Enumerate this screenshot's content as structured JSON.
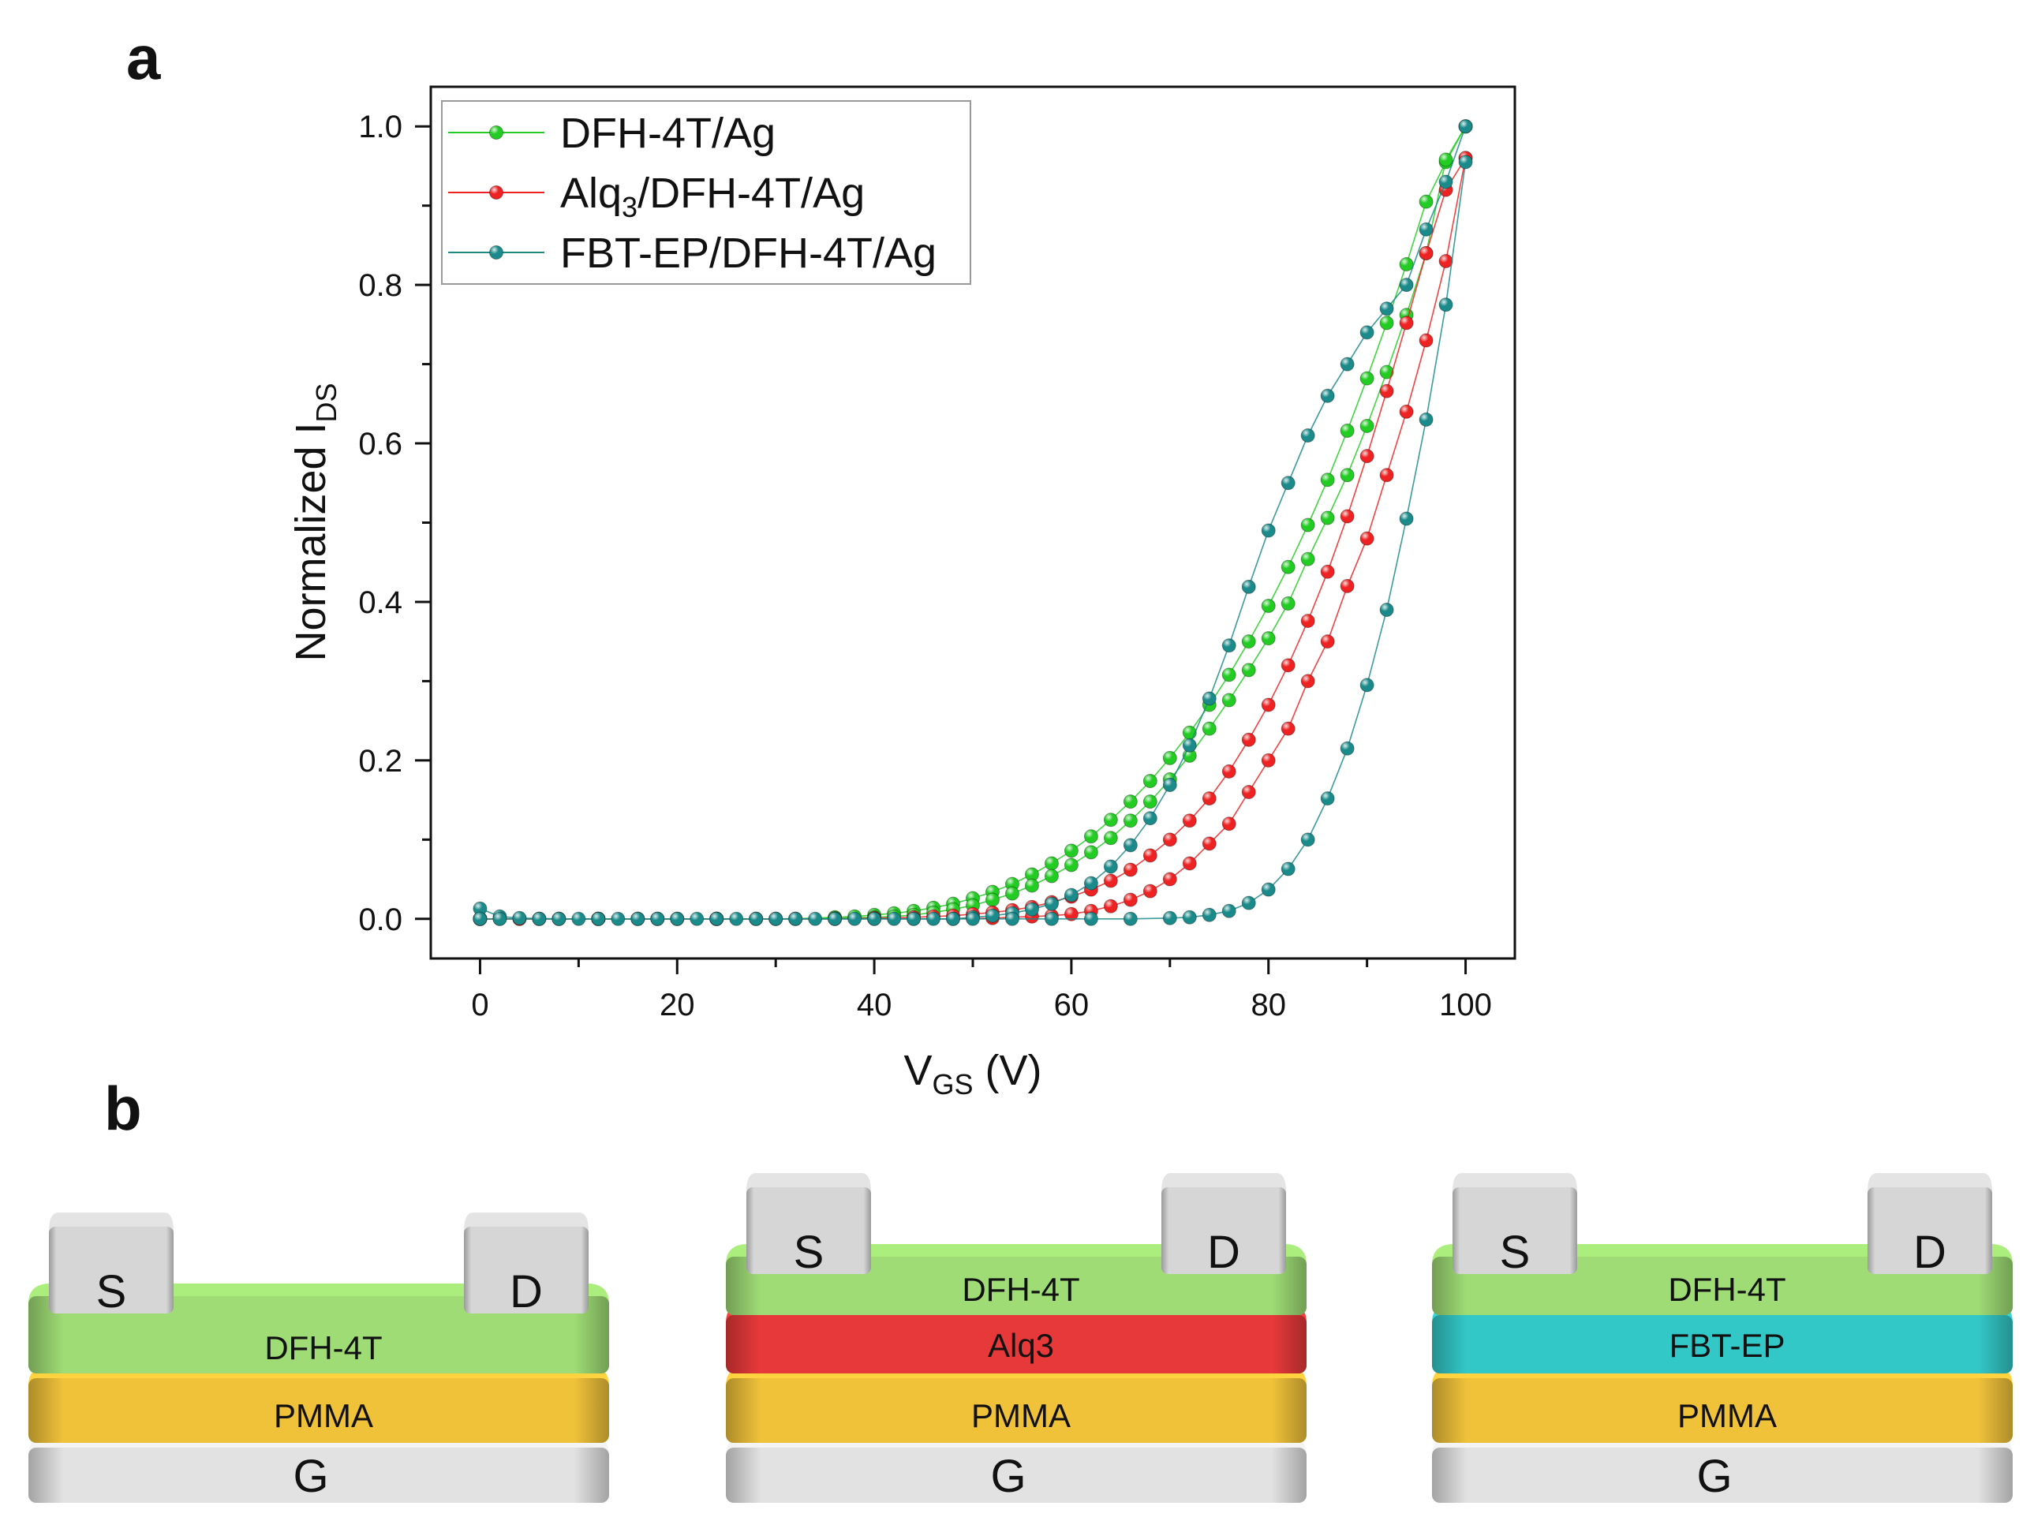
{
  "panels": {
    "a": "a",
    "b": "b"
  },
  "colors": {
    "green": "#22cc22",
    "red": "#ee2222",
    "teal": "#1a8a8a",
    "dfh": "#9fdc75",
    "alq": "#e8393a",
    "fbt": "#33c8c8",
    "pmma": "#f0c23a",
    "gate": "#e2e2e2",
    "electrode": "#d6d6d6"
  },
  "chart_data": {
    "type": "line",
    "title": "",
    "xlabel_main": "V",
    "xlabel_sub": "GS",
    "xlabel_tail": " (V)",
    "ylabel_main": "Normalized I",
    "ylabel_sub": "DS",
    "xlim": [
      -5,
      105
    ],
    "ylim": [
      -0.05,
      1.05
    ],
    "xticks": [
      "0",
      "20",
      "40",
      "60",
      "80",
      "100"
    ],
    "yticks": [
      "0.0",
      "0.2",
      "0.4",
      "0.6",
      "0.8",
      "1.0"
    ],
    "legend_position": "top-left",
    "series": [
      {
        "name": "DFH-4T/Ag",
        "name_parts": [
          "DFH-4T/Ag",
          "",
          ""
        ],
        "color": "#22cc22",
        "forward": [
          [
            0,
            0
          ],
          [
            4,
            0
          ],
          [
            8,
            0
          ],
          [
            12,
            0
          ],
          [
            16,
            0
          ],
          [
            20,
            0
          ],
          [
            24,
            0
          ],
          [
            28,
            0
          ],
          [
            32,
            0
          ],
          [
            36,
            0.002
          ],
          [
            38,
            0.003
          ],
          [
            40,
            0.005
          ],
          [
            42,
            0.007
          ],
          [
            44,
            0.01
          ],
          [
            46,
            0.014
          ],
          [
            48,
            0.019
          ],
          [
            50,
            0.026
          ],
          [
            52,
            0.034
          ],
          [
            54,
            0.044
          ],
          [
            56,
            0.056
          ],
          [
            58,
            0.07
          ],
          [
            60,
            0.086
          ],
          [
            62,
            0.104
          ],
          [
            64,
            0.125
          ],
          [
            66,
            0.148
          ],
          [
            68,
            0.174
          ],
          [
            70,
            0.203
          ],
          [
            72,
            0.235
          ],
          [
            74,
            0.27
          ],
          [
            76,
            0.308
          ],
          [
            78,
            0.35
          ],
          [
            80,
            0.395
          ],
          [
            82,
            0.444
          ],
          [
            84,
            0.497
          ],
          [
            86,
            0.554
          ],
          [
            88,
            0.616
          ],
          [
            90,
            0.682
          ],
          [
            92,
            0.752
          ],
          [
            94,
            0.826
          ],
          [
            96,
            0.905
          ],
          [
            98,
            0.955
          ],
          [
            100,
            1.0
          ]
        ],
        "reverse": [
          [
            100,
            1.0
          ],
          [
            98,
            0.958
          ],
          [
            96,
            0.84
          ],
          [
            94,
            0.762
          ],
          [
            92,
            0.69
          ],
          [
            90,
            0.622
          ],
          [
            88,
            0.56
          ],
          [
            86,
            0.506
          ],
          [
            84,
            0.454
          ],
          [
            82,
            0.398
          ],
          [
            80,
            0.354
          ],
          [
            78,
            0.314
          ],
          [
            76,
            0.276
          ],
          [
            74,
            0.24
          ],
          [
            72,
            0.206
          ],
          [
            70,
            0.176
          ],
          [
            68,
            0.148
          ],
          [
            66,
            0.124
          ],
          [
            64,
            0.102
          ],
          [
            62,
            0.084
          ],
          [
            60,
            0.068
          ],
          [
            58,
            0.054
          ],
          [
            56,
            0.042
          ],
          [
            54,
            0.032
          ],
          [
            52,
            0.024
          ],
          [
            50,
            0.017
          ],
          [
            48,
            0.012
          ],
          [
            46,
            0.008
          ],
          [
            44,
            0.005
          ],
          [
            42,
            0.003
          ],
          [
            40,
            0.002
          ],
          [
            36,
            0.001
          ],
          [
            30,
            0
          ],
          [
            24,
            0
          ],
          [
            18,
            0
          ],
          [
            12,
            0
          ],
          [
            6,
            0
          ],
          [
            2,
            0
          ],
          [
            0,
            0
          ]
        ]
      },
      {
        "name": "Alq3/DFH-4T/Ag",
        "name_parts": [
          "Alq",
          "3",
          "/DFH-4T/Ag"
        ],
        "color": "#ee2222",
        "forward": [
          [
            0,
            0
          ],
          [
            4,
            0
          ],
          [
            8,
            0
          ],
          [
            12,
            0
          ],
          [
            16,
            0
          ],
          [
            20,
            0
          ],
          [
            24,
            0
          ],
          [
            28,
            0
          ],
          [
            32,
            0
          ],
          [
            36,
            0
          ],
          [
            40,
            0.001
          ],
          [
            44,
            0.002
          ],
          [
            46,
            0.003
          ],
          [
            48,
            0.004
          ],
          [
            50,
            0.006
          ],
          [
            52,
            0.008
          ],
          [
            54,
            0.011
          ],
          [
            56,
            0.015
          ],
          [
            58,
            0.021
          ],
          [
            60,
            0.028
          ],
          [
            62,
            0.037
          ],
          [
            64,
            0.048
          ],
          [
            66,
            0.062
          ],
          [
            68,
            0.08
          ],
          [
            70,
            0.1
          ],
          [
            72,
            0.124
          ],
          [
            74,
            0.152
          ],
          [
            76,
            0.186
          ],
          [
            78,
            0.226
          ],
          [
            80,
            0.27
          ],
          [
            82,
            0.32
          ],
          [
            84,
            0.376
          ],
          [
            86,
            0.438
          ],
          [
            88,
            0.508
          ],
          [
            90,
            0.584
          ],
          [
            92,
            0.666
          ],
          [
            94,
            0.752
          ],
          [
            96,
            0.84
          ],
          [
            98,
            0.92
          ],
          [
            100,
            0.96
          ]
        ],
        "reverse": [
          [
            100,
            0.96
          ],
          [
            98,
            0.83
          ],
          [
            96,
            0.73
          ],
          [
            94,
            0.64
          ],
          [
            92,
            0.56
          ],
          [
            90,
            0.48
          ],
          [
            88,
            0.42
          ],
          [
            86,
            0.35
          ],
          [
            84,
            0.3
          ],
          [
            82,
            0.24
          ],
          [
            80,
            0.2
          ],
          [
            78,
            0.16
          ],
          [
            76,
            0.12
          ],
          [
            74,
            0.095
          ],
          [
            72,
            0.07
          ],
          [
            70,
            0.05
          ],
          [
            68,
            0.035
          ],
          [
            66,
            0.024
          ],
          [
            64,
            0.016
          ],
          [
            62,
            0.01
          ],
          [
            60,
            0.006
          ],
          [
            58,
            0.004
          ],
          [
            56,
            0.003
          ],
          [
            54,
            0.002
          ],
          [
            52,
            0.001
          ],
          [
            48,
            0
          ],
          [
            44,
            0
          ],
          [
            40,
            0
          ],
          [
            36,
            0
          ],
          [
            30,
            0
          ],
          [
            24,
            0
          ],
          [
            18,
            0
          ],
          [
            12,
            0
          ],
          [
            6,
            0
          ],
          [
            0,
            0
          ]
        ]
      },
      {
        "name": "FBT-EP/DFH-4T/Ag",
        "name_parts": [
          "FBT-EP/DFH-4T/Ag",
          "",
          ""
        ],
        "color": "#1a8a8a",
        "forward": [
          [
            0,
            0.013
          ],
          [
            2,
            0.003
          ],
          [
            4,
            0.001
          ],
          [
            8,
            0
          ],
          [
            12,
            0
          ],
          [
            16,
            0
          ],
          [
            20,
            0
          ],
          [
            24,
            0
          ],
          [
            28,
            0
          ],
          [
            32,
            0
          ],
          [
            36,
            0
          ],
          [
            40,
            0
          ],
          [
            44,
            0
          ],
          [
            48,
            0
          ],
          [
            50,
            0.002
          ],
          [
            52,
            0.004
          ],
          [
            54,
            0.007
          ],
          [
            56,
            0.012
          ],
          [
            58,
            0.019
          ],
          [
            60,
            0.03
          ],
          [
            62,
            0.045
          ],
          [
            64,
            0.066
          ],
          [
            66,
            0.093
          ],
          [
            68,
            0.127
          ],
          [
            70,
            0.169
          ],
          [
            72,
            0.219
          ],
          [
            74,
            0.278
          ],
          [
            76,
            0.345
          ],
          [
            78,
            0.419
          ],
          [
            80,
            0.49
          ],
          [
            82,
            0.55
          ],
          [
            84,
            0.61
          ],
          [
            86,
            0.66
          ],
          [
            88,
            0.7
          ],
          [
            90,
            0.74
          ],
          [
            92,
            0.77
          ],
          [
            94,
            0.8
          ],
          [
            96,
            0.87
          ],
          [
            98,
            0.93
          ],
          [
            100,
            1.0
          ]
        ],
        "reverse": [
          [
            100,
            0.955
          ],
          [
            98,
            0.775
          ],
          [
            96,
            0.63
          ],
          [
            94,
            0.505
          ],
          [
            92,
            0.39
          ],
          [
            90,
            0.295
          ],
          [
            88,
            0.215
          ],
          [
            86,
            0.152
          ],
          [
            84,
            0.1
          ],
          [
            82,
            0.063
          ],
          [
            80,
            0.037
          ],
          [
            78,
            0.02
          ],
          [
            76,
            0.01
          ],
          [
            74,
            0.005
          ],
          [
            72,
            0.002
          ],
          [
            70,
            0.001
          ],
          [
            66,
            0
          ],
          [
            62,
            0
          ],
          [
            58,
            0
          ],
          [
            54,
            0
          ],
          [
            50,
            0
          ],
          [
            46,
            0
          ],
          [
            42,
            0
          ],
          [
            38,
            0
          ],
          [
            34,
            0
          ],
          [
            30,
            0
          ],
          [
            26,
            0
          ],
          [
            22,
            0
          ],
          [
            18,
            0
          ],
          [
            14,
            0
          ],
          [
            10,
            0
          ],
          [
            6,
            0
          ],
          [
            2,
            0
          ],
          [
            0,
            0
          ]
        ]
      }
    ]
  },
  "devices": [
    {
      "source": "S",
      "drain": "D",
      "gate": "G",
      "layers": [
        {
          "label": "DFH-4T",
          "color": "#9fdc75"
        },
        {
          "label": "PMMA",
          "color": "#f0c23a"
        }
      ]
    },
    {
      "source": "S",
      "drain": "D",
      "gate": "G",
      "layers": [
        {
          "label": "DFH-4T",
          "color": "#9fdc75"
        },
        {
          "label": "Alq3",
          "color": "#e8393a"
        },
        {
          "label": "PMMA",
          "color": "#f0c23a"
        }
      ]
    },
    {
      "source": "S",
      "drain": "D",
      "gate": "G",
      "layers": [
        {
          "label": "DFH-4T",
          "color": "#9fdc75"
        },
        {
          "label": "FBT-EP",
          "color": "#33c8c8"
        },
        {
          "label": "PMMA",
          "color": "#f0c23a"
        }
      ]
    }
  ]
}
